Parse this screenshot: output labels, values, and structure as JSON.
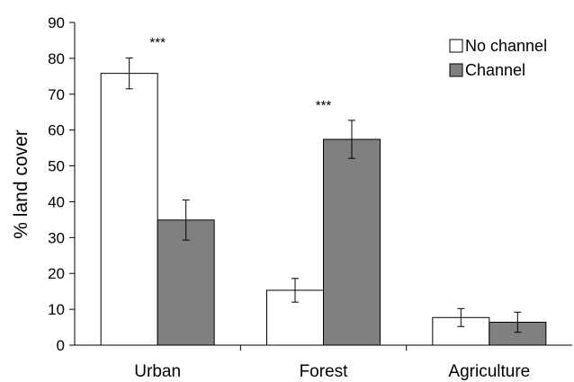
{
  "chart_data": {
    "type": "bar",
    "categories": [
      "Urban",
      "Forest",
      "Agriculture"
    ],
    "series": [
      {
        "name": "No channel",
        "values": [
          75.8,
          15.3,
          7.7
        ],
        "errors": [
          4.3,
          3.3,
          2.5
        ],
        "color": "#ffffff"
      },
      {
        "name": "Channel",
        "values": [
          34.9,
          57.4,
          6.4
        ],
        "errors": [
          5.6,
          5.3,
          2.8
        ],
        "color": "#808080"
      }
    ],
    "significance": [
      "***",
      "***",
      ""
    ],
    "ylabel": "% land cover",
    "xlabel": "",
    "ylim": [
      0,
      90
    ],
    "yticks": [
      0,
      10,
      20,
      30,
      40,
      50,
      60,
      70,
      80,
      90
    ],
    "grid": false,
    "legend_position": "top-right"
  }
}
